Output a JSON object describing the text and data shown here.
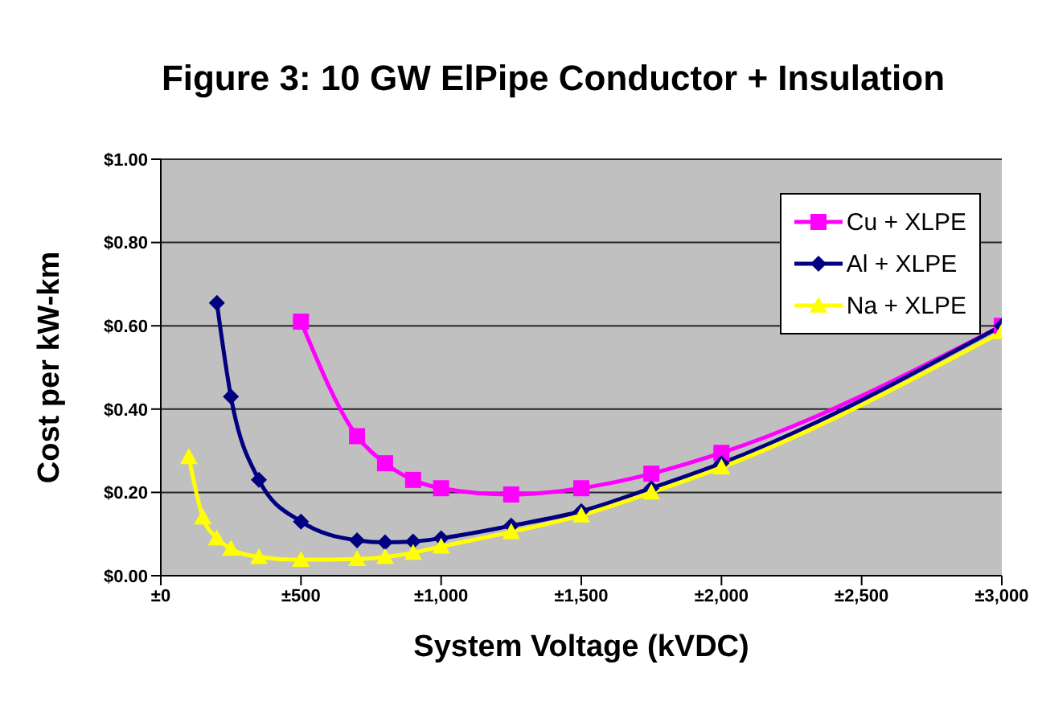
{
  "chart_data": {
    "type": "line",
    "title": "Figure 3:  10 GW ElPipe Conductor + Insulation",
    "xlabel": "System Voltage (kVDC)",
    "ylabel": "Cost per kW-km",
    "xlim": [
      0,
      3000
    ],
    "xticks": [
      {
        "value": 0,
        "label": "±0"
      },
      {
        "value": 500,
        "label": "±500"
      },
      {
        "value": 1000,
        "label": "±1,000"
      },
      {
        "value": 1500,
        "label": "±1,500"
      },
      {
        "value": 2000,
        "label": "±2,000"
      },
      {
        "value": 2500,
        "label": "±2,500"
      },
      {
        "value": 3000,
        "label": "±3,000"
      }
    ],
    "ylim": [
      0,
      1
    ],
    "yticks": [
      {
        "value": 0,
        "label": "$0.00"
      },
      {
        "value": 0.2,
        "label": "$0.20"
      },
      {
        "value": 0.4,
        "label": "$0.40"
      },
      {
        "value": 0.6,
        "label": "$0.60"
      },
      {
        "value": 0.8,
        "label": "$0.80"
      },
      {
        "value": 1,
        "label": "$1.00"
      }
    ],
    "grid": "y",
    "legend": "top right",
    "series": [
      {
        "name": "Cu + XLPE",
        "color": "#ff00ff",
        "marker": "square",
        "x": [
          500,
          700,
          800,
          900,
          1000,
          1250,
          1500,
          1750,
          2000,
          3000
        ],
        "values": [
          0.61,
          0.335,
          0.27,
          0.23,
          0.21,
          0.195,
          0.21,
          0.245,
          0.295,
          0.6
        ]
      },
      {
        "name": "Al + XLPE",
        "color": "#000080",
        "marker": "diamond",
        "x": [
          200,
          250,
          350,
          500,
          700,
          800,
          900,
          1000,
          1250,
          1500,
          1750,
          2000,
          3000
        ],
        "values": [
          0.655,
          0.43,
          0.23,
          0.13,
          0.085,
          0.08,
          0.082,
          0.09,
          0.12,
          0.155,
          0.21,
          0.27,
          0.6
        ]
      },
      {
        "name": "Na + XLPE",
        "color": "#ffff00",
        "marker": "triangle",
        "x": [
          100,
          150,
          200,
          250,
          350,
          500,
          700,
          800,
          900,
          1000,
          1250,
          1500,
          1750,
          2000,
          3000
        ],
        "values": [
          0.285,
          0.14,
          0.09,
          0.065,
          0.045,
          0.038,
          0.04,
          0.045,
          0.055,
          0.07,
          0.105,
          0.145,
          0.2,
          0.26,
          0.585
        ]
      }
    ]
  }
}
